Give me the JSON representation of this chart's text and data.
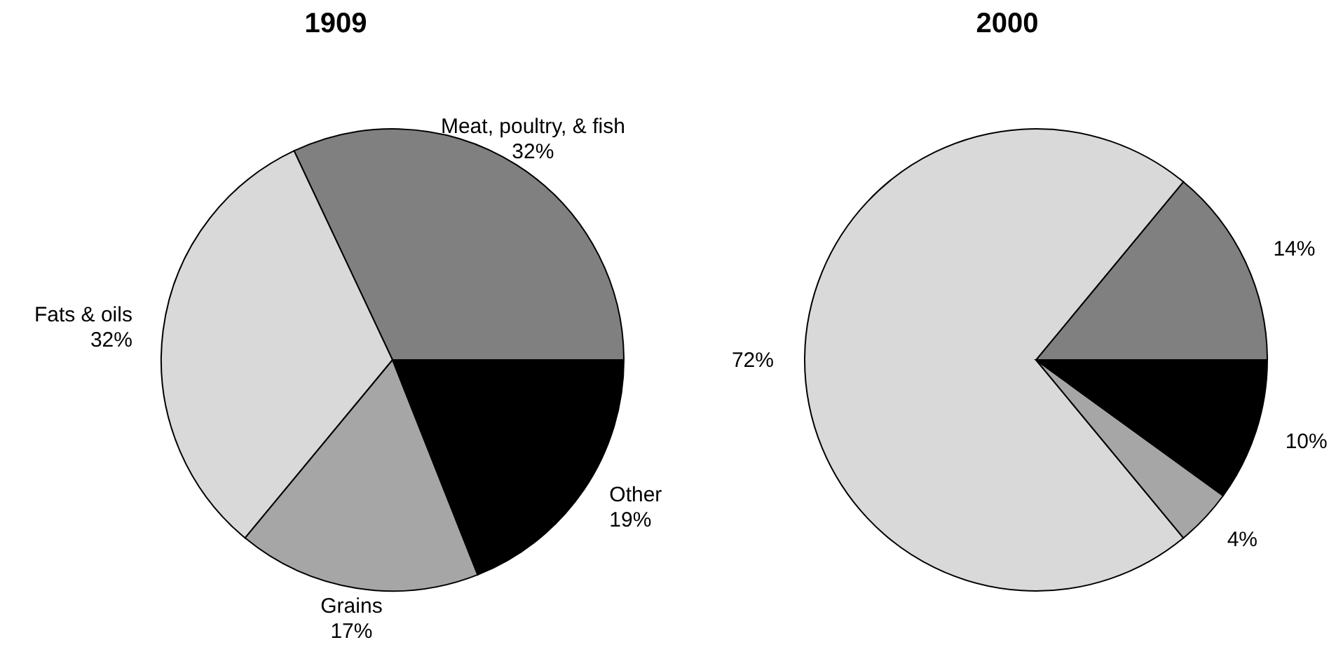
{
  "chart_data": [
    {
      "type": "pie",
      "title": "1909",
      "categories": [
        "Meat, poultry, & fish",
        "Fats & oils",
        "Grains",
        "Other"
      ],
      "values": [
        32,
        32,
        17,
        19
      ],
      "value_labels": [
        "32%",
        "32%",
        "17%",
        "19%"
      ],
      "colors": [
        "#808080",
        "#d9d9d9",
        "#a6a6a6",
        "#000000"
      ]
    },
    {
      "type": "pie",
      "title": "2000",
      "categories": [
        null,
        null,
        null,
        null
      ],
      "values": [
        14,
        72,
        4,
        10
      ],
      "value_labels": [
        "14%",
        "72%",
        "4%",
        "10%"
      ],
      "colors": [
        "#808080",
        "#d9d9d9",
        "#a6a6a6",
        "#000000"
      ]
    }
  ]
}
